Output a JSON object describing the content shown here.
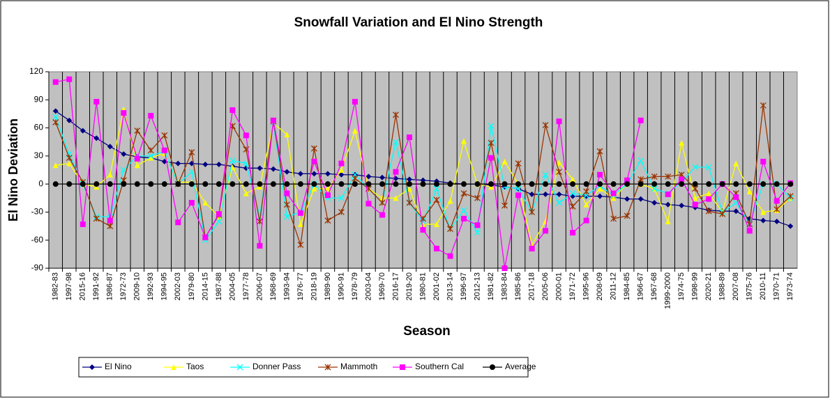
{
  "chart_data": {
    "type": "line",
    "title": "Snowfall Variation and El Nino Strength",
    "x_label": "Season",
    "y_label": "El Nino Deviation",
    "categories": [
      "1982-83",
      "1997-98",
      "2015-16",
      "1991-92",
      "1986-87",
      "1972-73",
      "2009-10",
      "1992-93",
      "1994-95",
      "2002-03",
      "1979-80",
      "2014-15",
      "1987-88",
      "2004-05",
      "1977-78",
      "2006-07",
      "1968-69",
      "1993-94",
      "1976-77",
      "2018-19",
      "1989-90",
      "1990-91",
      "1978-79",
      "2003-04",
      "1969-70",
      "2016-17",
      "2019-20",
      "1980-81",
      "2001-02",
      "2013-14",
      "1996-97",
      "2012-13",
      "1981-82",
      "1983-84",
      "1985-86",
      "2017-18",
      "2005-06",
      "2000-01",
      "1971-72",
      "1995-96",
      "2008-09",
      "2011-12",
      "1984-85",
      "1966-67",
      "1967-68",
      "1999-2000",
      "1974-75",
      "1998-99",
      "2020-21",
      "1988-89",
      "2007-08",
      "1975-76",
      "2010-11",
      "1970-71",
      "1973-74"
    ],
    "series": [
      {
        "name": "El Nino",
        "color": "#000080",
        "marker": "diamond",
        "values": [
          78,
          68,
          57,
          49,
          40,
          32,
          29,
          28,
          24,
          22,
          22,
          21,
          21,
          19,
          17,
          17,
          16,
          13,
          11,
          11,
          11,
          10,
          10,
          8,
          7,
          6,
          5,
          4,
          3,
          1,
          0,
          0,
          -1,
          -3,
          -5,
          -11,
          -11,
          -11,
          -13,
          -13,
          -13,
          -14,
          -16,
          -16,
          -20,
          -22,
          -23,
          -25,
          -28,
          -29,
          -29,
          -37,
          -39,
          -40,
          -45
        ]
      },
      {
        "name": "Taos",
        "color": "#ffff00",
        "marker": "triangle",
        "values": [
          20,
          22,
          0,
          -3,
          10,
          80,
          20,
          28,
          33,
          2,
          2,
          -20,
          -35,
          18,
          -10,
          -3,
          65,
          53,
          -43,
          -5,
          -5,
          15,
          57,
          -5,
          -15,
          -15,
          -5,
          -43,
          -43,
          -18,
          46,
          0,
          -3,
          24,
          0,
          -65,
          -40,
          23,
          5,
          -22,
          -5,
          -15,
          0,
          0,
          -5,
          -40,
          44,
          -15,
          -10,
          -30,
          22,
          -8,
          -30,
          -28,
          -15
        ]
      },
      {
        "name": "Donner Pass",
        "color": "#00ffff",
        "marker": "cross",
        "values": [
          72,
          32,
          0,
          -35,
          -35,
          15,
          30,
          30,
          35,
          0,
          13,
          -60,
          -40,
          25,
          22,
          -35,
          65,
          -35,
          -30,
          0,
          -15,
          -15,
          10,
          -5,
          -20,
          45,
          -20,
          -40,
          -5,
          -48,
          -28,
          -52,
          62,
          -3,
          -5,
          -30,
          10,
          -20,
          -10,
          -12,
          -2,
          -12,
          0,
          25,
          -5,
          -10,
          2,
          18,
          18,
          -30,
          -20,
          -42,
          0,
          0,
          -15
        ]
      },
      {
        "name": "Mammoth",
        "color": "#993300",
        "marker": "asterisk",
        "values": [
          66,
          28,
          2,
          -37,
          -45,
          4,
          57,
          36,
          52,
          0,
          34,
          -57,
          -33,
          62,
          37,
          -40,
          67,
          -22,
          -65,
          38,
          -39,
          -30,
          6,
          -5,
          -20,
          74,
          -20,
          -37,
          -17,
          -48,
          -10,
          -15,
          44,
          -23,
          22,
          -30,
          63,
          13,
          -24,
          -8,
          35,
          -37,
          -34,
          5,
          8,
          8,
          10,
          -5,
          -29,
          -32,
          -10,
          -43,
          84,
          -27,
          -13
        ]
      },
      {
        "name": "Southern Cal",
        "color": "#ff00ff",
        "marker": "square",
        "values": [
          109,
          112,
          -43,
          88,
          -39,
          76,
          27,
          73,
          36,
          -41,
          -20,
          -57,
          -32,
          79,
          52,
          -66,
          68,
          -10,
          -31,
          24,
          -12,
          22,
          88,
          -21,
          -33,
          13,
          50,
          -49,
          -69,
          -77,
          -37,
          -44,
          28,
          -90,
          -12,
          -69,
          -50,
          67,
          -52,
          -39,
          10,
          -10,
          4,
          68,
          null,
          -11,
          5,
          -22,
          -16,
          0,
          -14,
          -50,
          24,
          -18,
          1
        ]
      },
      {
        "name": "Average",
        "color": "#000000",
        "marker": "circle",
        "values": [
          0,
          0,
          0,
          0,
          0,
          0,
          0,
          0,
          0,
          0,
          0,
          0,
          0,
          0,
          0,
          0,
          0,
          0,
          0,
          0,
          0,
          0,
          0,
          0,
          0,
          0,
          0,
          0,
          0,
          0,
          0,
          0,
          0,
          0,
          0,
          0,
          0,
          0,
          0,
          0,
          0,
          0,
          0,
          0,
          0,
          0,
          0,
          0,
          0,
          0,
          0,
          0,
          0,
          0,
          0
        ]
      }
    ],
    "ylim": [
      -90,
      120
    ],
    "yticks": [
      -90,
      -60,
      -30,
      0,
      30,
      60,
      90,
      120
    ],
    "plot_background": "#c0c0c0",
    "legend": "bottom"
  }
}
